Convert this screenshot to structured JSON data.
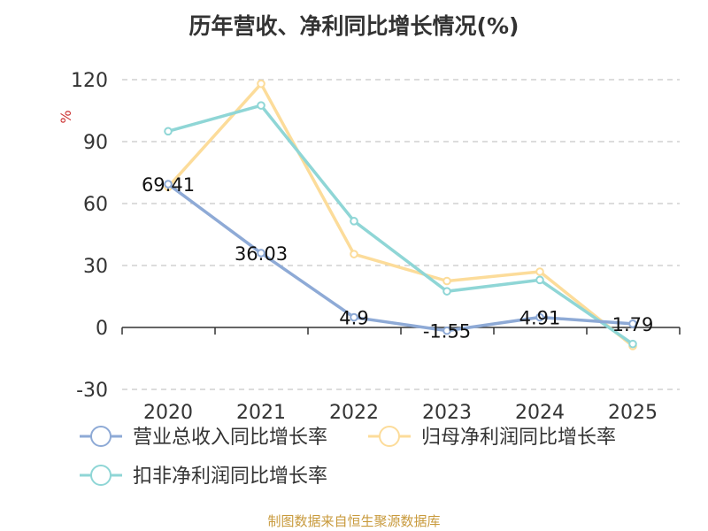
{
  "chart_data": {
    "type": "line",
    "title": "历年营收、净利同比增长情况(%)",
    "ylabel": "%",
    "xlabel": "",
    "categories": [
      "2020",
      "2021",
      "2022",
      "2023",
      "2024",
      "2025"
    ],
    "ylim": [
      -30,
      120
    ],
    "yticks": [
      120,
      90,
      60,
      30,
      0,
      -30
    ],
    "grid": true,
    "legend_position": "bottom-left",
    "series": [
      {
        "name": "营业总收入同比增长率",
        "color": "#8eaad6",
        "values": [
          69.41,
          36.03,
          4.9,
          -1.55,
          4.91,
          1.79
        ],
        "labels": [
          "69.41",
          "36.03",
          "4.9",
          "-1.55",
          "4.91",
          "1.79"
        ]
      },
      {
        "name": "归母净利润同比增长率",
        "color": "#fcdc9a",
        "values": [
          68,
          118,
          35.5,
          22.5,
          27,
          -9
        ]
      },
      {
        "name": "扣非净利润同比增长率",
        "color": "#8fd6d6",
        "values": [
          95,
          107.5,
          51.5,
          17.5,
          23,
          -8
        ]
      }
    ]
  },
  "source": "制图数据来自恒生聚源数据库"
}
